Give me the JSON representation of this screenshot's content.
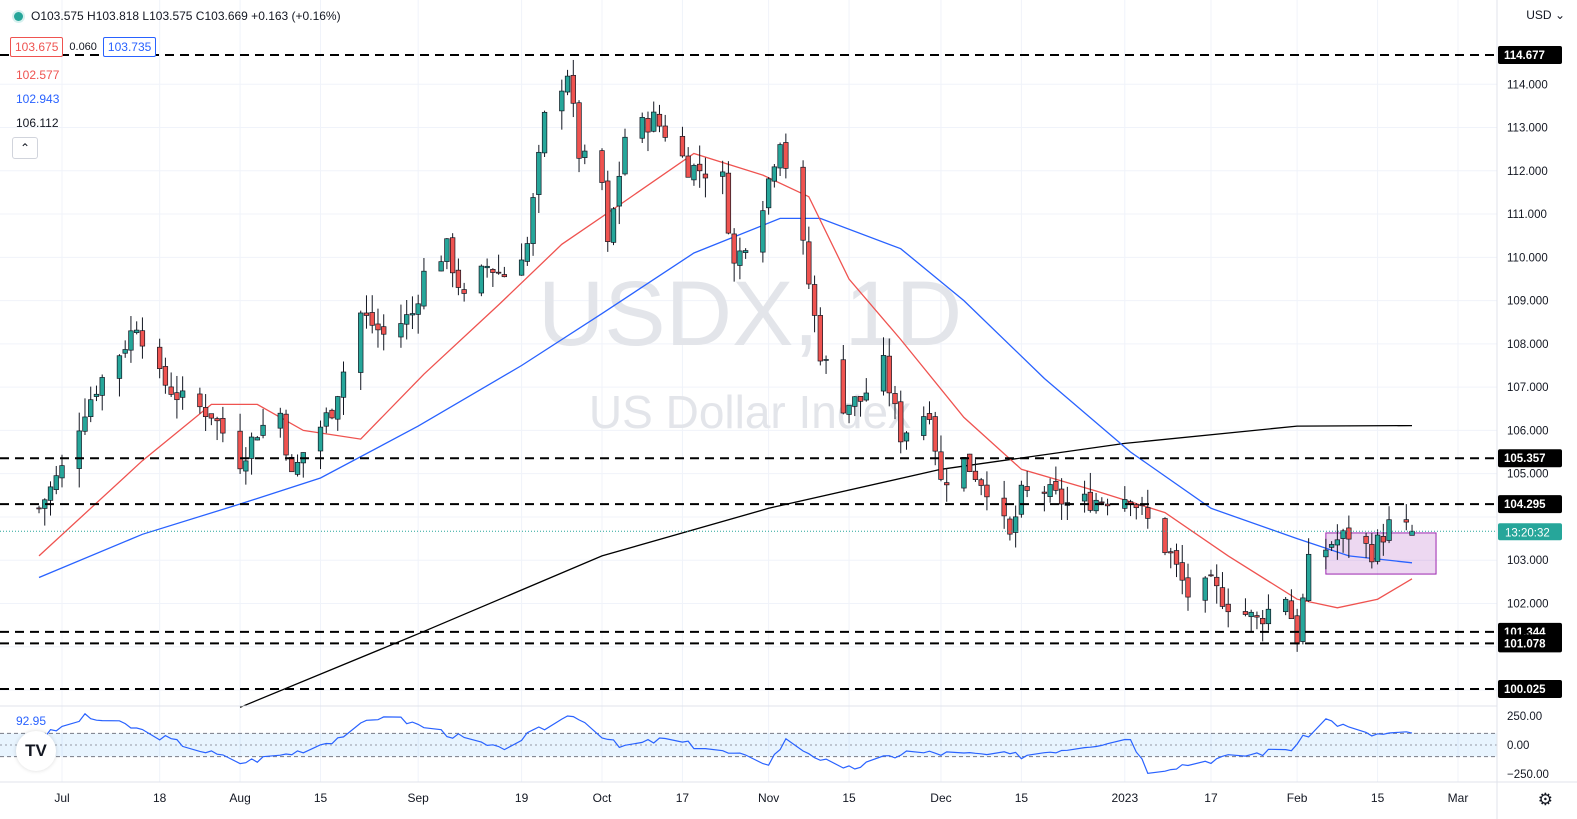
{
  "header": {
    "ohlc": "O103.575 H103.818 L103.575 C103.669 +0.163 (+0.16%)",
    "bid": "103.675",
    "spread": "0.060",
    "ask": "103.735",
    "ma_values": [
      "102.577",
      "102.943",
      "106.112"
    ],
    "collapse_symbol": "⌃",
    "currency": "USD",
    "currency_arrow": "⌄"
  },
  "watermark": {
    "symbol": "USDX, 1D",
    "name": "US Dollar Index"
  },
  "rsi_pane": {
    "label": "92.95",
    "ticks": [
      "250.00",
      "0.00",
      "−250.00"
    ]
  },
  "logo_text": "TV",
  "gear_icon": "⚙",
  "colors": {
    "up": "#26a69a",
    "down": "#ef5350",
    "ma20": "#ef5350",
    "ma50": "#2962ff",
    "ma200": "#000000",
    "box_fill": "rgba(156,39,176,0.18)",
    "box_stroke": "#9c27b0",
    "cci": "#2962ff"
  },
  "chart_data": {
    "type": "candlestick",
    "title": "USDX, 1D",
    "subtitle": "US Dollar Index",
    "ylim": [
      99.7,
      115.3
    ],
    "y_ticks": [
      100,
      101,
      102,
      103,
      104,
      105,
      106,
      107,
      108,
      109,
      110,
      111,
      112,
      113,
      114
    ],
    "y_tick_labels": [
      "100.000",
      "101.000",
      "102.000",
      "103.000",
      "104.000",
      "105.000",
      "106.000",
      "107.000",
      "108.000",
      "109.000",
      "110.000",
      "111.000",
      "112.000",
      "113.000",
      "114.000"
    ],
    "x_labels": [
      {
        "label": "Jul",
        "date": "2022-07-01"
      },
      {
        "label": "18",
        "date": "2022-07-18"
      },
      {
        "label": "Aug",
        "date": "2022-08-01"
      },
      {
        "label": "15",
        "date": "2022-08-15"
      },
      {
        "label": "Sep",
        "date": "2022-09-01"
      },
      {
        "label": "19",
        "date": "2022-09-19"
      },
      {
        "label": "Oct",
        "date": "2022-10-03"
      },
      {
        "label": "17",
        "date": "2022-10-17"
      },
      {
        "label": "Nov",
        "date": "2022-11-01"
      },
      {
        "label": "15",
        "date": "2022-11-15"
      },
      {
        "label": "Dec",
        "date": "2022-12-01"
      },
      {
        "label": "15",
        "date": "2022-12-15"
      },
      {
        "label": "2023",
        "date": "2023-01-02"
      },
      {
        "label": "17",
        "date": "2023-01-17"
      },
      {
        "label": "Feb",
        "date": "2023-02-01"
      },
      {
        "label": "15",
        "date": "2023-02-15"
      },
      {
        "label": "Mar",
        "date": "2023-03-01"
      }
    ],
    "horizontal_levels": [
      114.677,
      105.357,
      104.295,
      101.344,
      101.078,
      100.025
    ],
    "level_labels": [
      "114.677",
      "105.357",
      "104.295",
      "101.344",
      "101.078",
      "100.025"
    ],
    "last_price": 103.669,
    "last_time_label": "13:20:32",
    "consolidation_box": {
      "from": "2023-02-06",
      "to": "2023-02-21",
      "low": 102.68,
      "high": 103.63
    },
    "close_path": [
      {
        "date": "2022-06-27",
        "c": 104.2
      },
      {
        "date": "2022-07-01",
        "c": 105.1
      },
      {
        "date": "2022-07-05",
        "c": 106.5
      },
      {
        "date": "2022-07-07",
        "c": 107.0
      },
      {
        "date": "2022-07-12",
        "c": 108.0
      },
      {
        "date": "2022-07-14",
        "c": 108.5
      },
      {
        "date": "2022-07-18",
        "c": 107.2
      },
      {
        "date": "2022-07-22",
        "c": 106.7
      },
      {
        "date": "2022-07-27",
        "c": 106.4
      },
      {
        "date": "2022-08-01",
        "c": 105.3
      },
      {
        "date": "2022-08-04",
        "c": 106.0
      },
      {
        "date": "2022-08-08",
        "c": 106.4
      },
      {
        "date": "2022-08-10",
        "c": 104.9
      },
      {
        "date": "2022-08-12",
        "c": 105.5
      },
      {
        "date": "2022-08-17",
        "c": 106.5
      },
      {
        "date": "2022-08-22",
        "c": 108.7
      },
      {
        "date": "2022-08-26",
        "c": 108.2
      },
      {
        "date": "2022-08-31",
        "c": 108.7
      },
      {
        "date": "2022-09-02",
        "c": 109.6
      },
      {
        "date": "2022-09-06",
        "c": 110.2
      },
      {
        "date": "2022-09-09",
        "c": 109.0
      },
      {
        "date": "2022-09-13",
        "c": 109.8
      },
      {
        "date": "2022-09-16",
        "c": 109.6
      },
      {
        "date": "2022-09-20",
        "c": 110.3
      },
      {
        "date": "2022-09-23",
        "c": 113.2
      },
      {
        "date": "2022-09-27",
        "c": 114.3
      },
      {
        "date": "2022-09-29",
        "c": 112.4
      },
      {
        "date": "2022-10-03",
        "c": 111.7
      },
      {
        "date": "2022-10-04",
        "c": 110.2
      },
      {
        "date": "2022-10-07",
        "c": 112.8
      },
      {
        "date": "2022-10-12",
        "c": 113.2
      },
      {
        "date": "2022-10-14",
        "c": 112.9
      },
      {
        "date": "2022-10-18",
        "c": 112.1
      },
      {
        "date": "2022-10-21",
        "c": 112.0
      },
      {
        "date": "2022-10-24",
        "c": 111.8
      },
      {
        "date": "2022-10-26",
        "c": 109.8
      },
      {
        "date": "2022-10-31",
        "c": 111.3
      },
      {
        "date": "2022-11-03",
        "c": 112.8
      },
      {
        "date": "2022-11-07",
        "c": 110.2
      },
      {
        "date": "2022-11-10",
        "c": 107.8
      },
      {
        "date": "2022-11-14",
        "c": 106.6
      },
      {
        "date": "2022-11-17",
        "c": 106.7
      },
      {
        "date": "2022-11-21",
        "c": 107.5
      },
      {
        "date": "2022-11-24",
        "c": 105.9
      },
      {
        "date": "2022-11-29",
        "c": 106.5
      },
      {
        "date": "2022-12-01",
        "c": 104.8
      },
      {
        "date": "2022-12-05",
        "c": 105.3
      },
      {
        "date": "2022-12-09",
        "c": 104.7
      },
      {
        "date": "2022-12-13",
        "c": 103.5
      },
      {
        "date": "2022-12-15",
        "c": 104.5
      },
      {
        "date": "2022-12-19",
        "c": 104.6
      },
      {
        "date": "2022-12-23",
        "c": 104.3
      },
      {
        "date": "2022-12-28",
        "c": 104.4
      },
      {
        "date": "2023-01-03",
        "c": 104.5
      },
      {
        "date": "2023-01-06",
        "c": 103.9
      },
      {
        "date": "2023-01-10",
        "c": 103.1
      },
      {
        "date": "2023-01-13",
        "c": 102.2
      },
      {
        "date": "2023-01-17",
        "c": 102.4
      },
      {
        "date": "2023-01-20",
        "c": 102.0
      },
      {
        "date": "2023-01-25",
        "c": 101.6
      },
      {
        "date": "2023-01-30",
        "c": 102.2
      },
      {
        "date": "2023-02-01",
        "c": 101.2
      },
      {
        "date": "2023-02-03",
        "c": 102.9
      },
      {
        "date": "2023-02-07",
        "c": 103.4
      },
      {
        "date": "2023-02-10",
        "c": 103.6
      },
      {
        "date": "2023-02-14",
        "c": 103.2
      },
      {
        "date": "2023-02-17",
        "c": 103.8
      },
      {
        "date": "2023-02-21",
        "c": 103.67
      }
    ],
    "ma20": [
      {
        "date": "2022-06-27",
        "v": 103.1
      },
      {
        "date": "2022-07-15",
        "v": 105.3
      },
      {
        "date": "2022-07-27",
        "v": 106.6
      },
      {
        "date": "2022-08-04",
        "v": 106.6
      },
      {
        "date": "2022-08-12",
        "v": 106.0
      },
      {
        "date": "2022-08-22",
        "v": 105.8
      },
      {
        "date": "2022-09-02",
        "v": 107.3
      },
      {
        "date": "2022-09-15",
        "v": 108.9
      },
      {
        "date": "2022-09-26",
        "v": 110.3
      },
      {
        "date": "2022-10-07",
        "v": 111.3
      },
      {
        "date": "2022-10-19",
        "v": 112.4
      },
      {
        "date": "2022-10-31",
        "v": 111.9
      },
      {
        "date": "2022-11-08",
        "v": 111.4
      },
      {
        "date": "2022-11-15",
        "v": 109.5
      },
      {
        "date": "2022-11-24",
        "v": 108.1
      },
      {
        "date": "2022-12-05",
        "v": 106.3
      },
      {
        "date": "2022-12-15",
        "v": 105.1
      },
      {
        "date": "2022-12-28",
        "v": 104.6
      },
      {
        "date": "2023-01-09",
        "v": 104.1
      },
      {
        "date": "2023-01-20",
        "v": 103.1
      },
      {
        "date": "2023-02-01",
        "v": 102.1
      },
      {
        "date": "2023-02-08",
        "v": 101.9
      },
      {
        "date": "2023-02-15",
        "v": 102.1
      },
      {
        "date": "2023-02-21",
        "v": 102.57
      }
    ],
    "ma50": [
      {
        "date": "2022-06-27",
        "v": 102.6
      },
      {
        "date": "2022-07-15",
        "v": 103.6
      },
      {
        "date": "2022-08-01",
        "v": 104.3
      },
      {
        "date": "2022-08-15",
        "v": 104.9
      },
      {
        "date": "2022-09-01",
        "v": 106.1
      },
      {
        "date": "2022-09-19",
        "v": 107.5
      },
      {
        "date": "2022-10-03",
        "v": 108.7
      },
      {
        "date": "2022-10-19",
        "v": 110.1
      },
      {
        "date": "2022-11-03",
        "v": 110.9
      },
      {
        "date": "2022-11-10",
        "v": 110.9
      },
      {
        "date": "2022-11-24",
        "v": 110.2
      },
      {
        "date": "2022-12-05",
        "v": 109.0
      },
      {
        "date": "2022-12-19",
        "v": 107.2
      },
      {
        "date": "2023-01-03",
        "v": 105.5
      },
      {
        "date": "2023-01-17",
        "v": 104.2
      },
      {
        "date": "2023-02-01",
        "v": 103.5
      },
      {
        "date": "2023-02-10",
        "v": 103.1
      },
      {
        "date": "2023-02-21",
        "v": 102.94
      }
    ],
    "ma200": [
      {
        "date": "2022-08-01",
        "v": 99.6
      },
      {
        "date": "2022-09-01",
        "v": 101.3
      },
      {
        "date": "2022-10-03",
        "v": 103.1
      },
      {
        "date": "2022-11-01",
        "v": 104.2
      },
      {
        "date": "2022-12-01",
        "v": 105.1
      },
      {
        "date": "2023-01-02",
        "v": 105.7
      },
      {
        "date": "2023-02-01",
        "v": 106.1
      },
      {
        "date": "2023-02-21",
        "v": 106.11
      }
    ],
    "cci": [
      {
        "date": "2022-06-27",
        "v": 60
      },
      {
        "date": "2022-07-05",
        "v": 240
      },
      {
        "date": "2022-07-12",
        "v": 170
      },
      {
        "date": "2022-07-20",
        "v": 40
      },
      {
        "date": "2022-08-01",
        "v": -150
      },
      {
        "date": "2022-08-10",
        "v": -70
      },
      {
        "date": "2022-08-17",
        "v": 40
      },
      {
        "date": "2022-08-26",
        "v": 260
      },
      {
        "date": "2022-09-06",
        "v": 100
      },
      {
        "date": "2022-09-15",
        "v": -40
      },
      {
        "date": "2022-09-28",
        "v": 270
      },
      {
        "date": "2022-10-06",
        "v": -20
      },
      {
        "date": "2022-10-14",
        "v": 50
      },
      {
        "date": "2022-10-24",
        "v": -60
      },
      {
        "date": "2022-11-01",
        "v": -150
      },
      {
        "date": "2022-11-04",
        "v": 40
      },
      {
        "date": "2022-11-14",
        "v": -220
      },
      {
        "date": "2022-11-25",
        "v": -60
      },
      {
        "date": "2022-12-05",
        "v": -80
      },
      {
        "date": "2022-12-15",
        "v": -90
      },
      {
        "date": "2023-01-03",
        "v": 60
      },
      {
        "date": "2023-01-06",
        "v": -220
      },
      {
        "date": "2023-01-18",
        "v": -120
      },
      {
        "date": "2023-01-31",
        "v": -30
      },
      {
        "date": "2023-02-06",
        "v": 220
      },
      {
        "date": "2023-02-13",
        "v": 90
      },
      {
        "date": "2023-02-21",
        "v": 92.95
      }
    ]
  }
}
